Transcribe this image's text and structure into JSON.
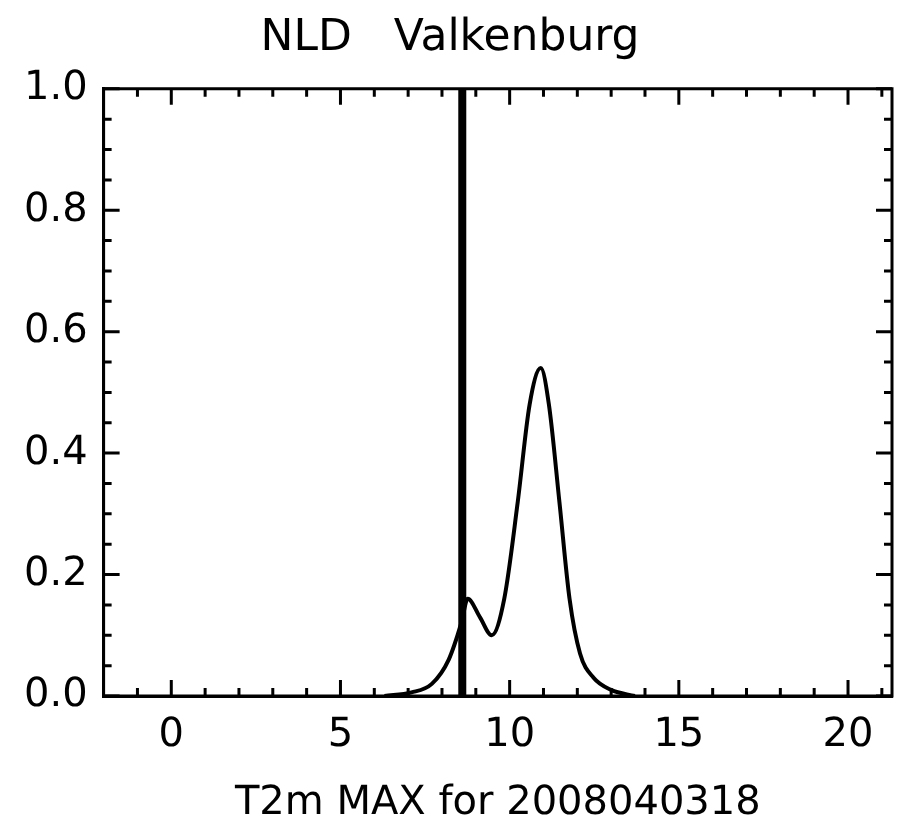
{
  "chart_data": {
    "type": "line",
    "title": "NLD   Valkenburg",
    "xlabel": "T2m MAX for 2008040318",
    "x": [
      6.3,
      7.1,
      7.7,
      8.2,
      8.57,
      8.76,
      9.12,
      9.47,
      9.84,
      10.24,
      10.59,
      10.92,
      11.16,
      11.47,
      11.77,
      12.08,
      12.48,
      13.0,
      13.7
    ],
    "values": [
      0,
      0.006,
      0.02,
      0.06,
      0.12,
      0.16,
      0.13,
      0.1,
      0.16,
      0.32,
      0.48,
      0.54,
      0.48,
      0.32,
      0.16,
      0.07,
      0.03,
      0.01,
      0
    ],
    "color": "#000000",
    "marker": "none",
    "line_style": "solid",
    "legend": false,
    "grid": false,
    "xlim": [
      -2,
      21.3
    ],
    "xticks": [
      {
        "value": -1,
        "label": null
      },
      0,
      {
        "value": 1,
        "label": null
      },
      {
        "value": 2,
        "label": null
      },
      {
        "value": 3,
        "label": null
      },
      {
        "value": 4,
        "label": null
      },
      5,
      {
        "value": 6,
        "label": null
      },
      {
        "value": 7,
        "label": null
      },
      {
        "value": 8,
        "label": null
      },
      {
        "value": 9,
        "label": null
      },
      10,
      {
        "value": 11,
        "label": null
      },
      {
        "value": 12,
        "label": null
      },
      {
        "value": 13,
        "label": null
      },
      {
        "value": 14,
        "label": null
      },
      15,
      {
        "value": 16,
        "label": null
      },
      {
        "value": 17,
        "label": null
      },
      {
        "value": 18,
        "label": null
      },
      {
        "value": 19,
        "label": null
      },
      20,
      {
        "value": 21,
        "label": null
      }
    ],
    "ylim": [
      0,
      1
    ],
    "yticks": [
      {
        "value": 0,
        "label": "0.0"
      },
      {
        "value": 0.05,
        "label": null
      },
      {
        "value": 0.1,
        "label": null
      },
      {
        "value": 0.15,
        "label": null
      },
      {
        "value": 0.2,
        "label": "0.2"
      },
      {
        "value": 0.25,
        "label": null
      },
      {
        "value": 0.3,
        "label": null
      },
      {
        "value": 0.35,
        "label": null
      },
      {
        "value": 0.4,
        "label": "0.4"
      },
      {
        "value": 0.45,
        "label": null
      },
      {
        "value": 0.5,
        "label": null
      },
      {
        "value": 0.55,
        "label": null
      },
      {
        "value": 0.6,
        "label": "0.6"
      },
      {
        "value": 0.65,
        "label": null
      },
      {
        "value": 0.7,
        "label": null
      },
      {
        "value": 0.75,
        "label": null
      },
      {
        "value": 0.8,
        "label": "0.8"
      },
      {
        "value": 0.85,
        "label": null
      },
      {
        "value": 0.9,
        "label": null
      },
      {
        "value": 0.95,
        "label": null
      },
      {
        "value": 1.0,
        "label": "1.0"
      }
    ],
    "ref_lines": [
      {
        "axis": "x",
        "value": 8.6,
        "color": "#000000",
        "line_style": "solid"
      }
    ]
  }
}
